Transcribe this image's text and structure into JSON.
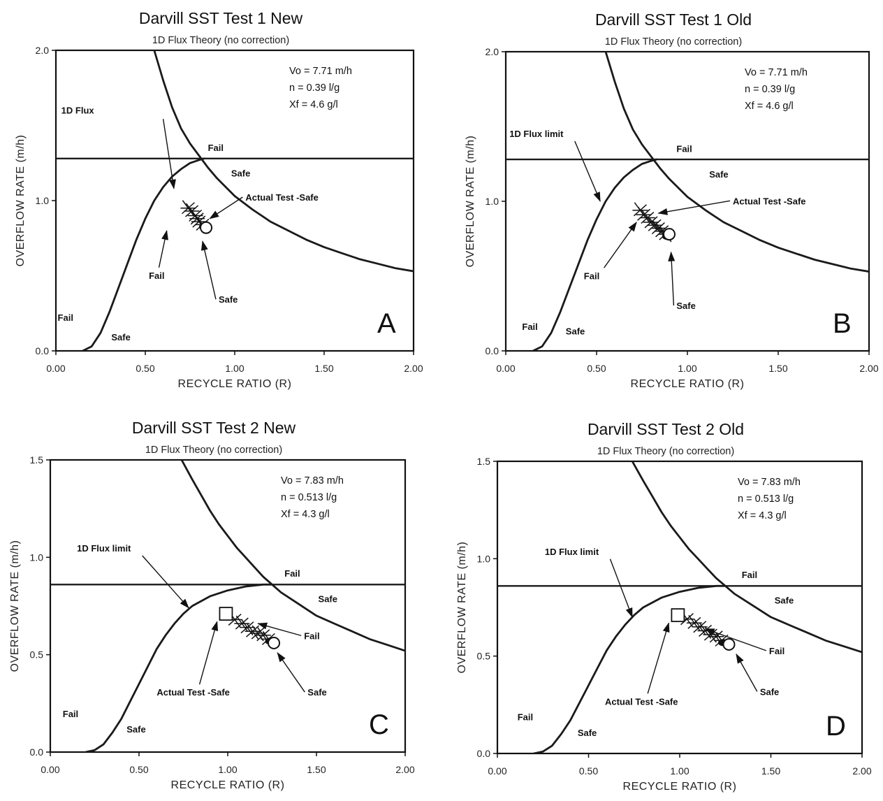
{
  "chart_data": [
    {
      "type": "line",
      "panel_letter": "A",
      "title": "Darvill SST Test 1 New",
      "subtitle": "1D Flux Theory (no correction)",
      "xlabel": "RECYCLE RATIO (R)",
      "ylabel": "OVERFLOW RATE (m/h)",
      "xlim": [
        0,
        2
      ],
      "ylim": [
        0,
        2
      ],
      "x_ticks": [
        "0.00",
        "0.50",
        "1.00",
        "1.50",
        "2.00"
      ],
      "x_tick_values": [
        0,
        0.5,
        1,
        1.5,
        2
      ],
      "y_ticks": [
        "0.0",
        "1.0",
        "2.0"
      ],
      "y_tick_values": [
        0,
        1,
        2
      ],
      "params": [
        "Vo = 7.71 m/h",
        "n = 0.39 l/g",
        "Xf = 4.6 g/l"
      ],
      "series": [
        {
          "x": [
            0.15,
            0.2,
            0.25,
            0.3,
            0.35,
            0.4,
            0.45,
            0.5,
            0.55,
            0.6,
            0.65,
            0.7,
            0.75,
            0.8,
            0.83
          ],
          "y": [
            0.0,
            0.03,
            0.12,
            0.26,
            0.42,
            0.58,
            0.74,
            0.88,
            1.0,
            1.09,
            1.16,
            1.21,
            1.25,
            1.27,
            1.28
          ]
        },
        {
          "x": [
            0.55,
            0.6,
            0.65,
            0.7,
            0.75,
            0.8,
            0.85,
            0.9,
            1.0,
            1.1,
            1.2,
            1.3,
            1.4,
            1.5,
            1.6,
            1.7,
            1.8,
            1.9,
            2.0
          ],
          "y": [
            2.0,
            1.8,
            1.62,
            1.48,
            1.38,
            1.3,
            1.22,
            1.15,
            1.03,
            0.94,
            0.86,
            0.8,
            0.74,
            0.69,
            0.65,
            0.61,
            0.58,
            0.55,
            0.53
          ]
        },
        {
          "x": [
            0,
            2
          ],
          "y": [
            1.28,
            1.28
          ]
        }
      ],
      "test_points": {
        "x": [
          0.74,
          0.76,
          0.78,
          0.79,
          0.8,
          0.82
        ],
        "y": [
          0.95,
          0.93,
          0.9,
          0.88,
          0.86,
          0.84
        ]
      },
      "safe_point": {
        "x": 0.84,
        "y": 0.82
      },
      "annotations": [
        {
          "text": "1D Flux",
          "x": 0.03,
          "y": 1.58,
          "arrow_to": null
        },
        {
          "text": "",
          "x": 0.6,
          "y": 1.52,
          "arrow_to": [
            0.66,
            1.08
          ]
        },
        {
          "text": "Fail",
          "x": 0.85,
          "y": 1.33,
          "arrow_to": null
        },
        {
          "text": "Safe",
          "x": 0.98,
          "y": 1.16,
          "arrow_to": null
        },
        {
          "text": "Actual Test -Safe",
          "x": 1.06,
          "y": 1.0,
          "arrow_to": [
            0.86,
            0.88
          ]
        },
        {
          "text": "Fail",
          "x": 0.52,
          "y": 0.48,
          "arrow_to": [
            0.62,
            0.8
          ]
        },
        {
          "text": "Safe",
          "x": 0.91,
          "y": 0.32,
          "arrow_to": [
            0.82,
            0.73
          ]
        },
        {
          "text": "Fail",
          "x": 0.01,
          "y": 0.2,
          "arrow_to": null
        },
        {
          "text": "Safe",
          "x": 0.31,
          "y": 0.07,
          "arrow_to": null
        }
      ]
    },
    {
      "type": "line",
      "panel_letter": "B",
      "title": "Darvill SST Test 1 Old",
      "subtitle": "1D Flux Theory (no correction)",
      "xlabel": "RECYCLE RATIO (R)",
      "ylabel": "OVERFLOW RATE (m/h)",
      "xlim": [
        0,
        2
      ],
      "ylim": [
        0,
        2
      ],
      "x_ticks": [
        "0.00",
        "0.50",
        "1.00",
        "1.50",
        "2.00"
      ],
      "x_tick_values": [
        0,
        0.5,
        1,
        1.5,
        2
      ],
      "y_ticks": [
        "0.0",
        "1.0",
        "2.0"
      ],
      "y_tick_values": [
        0,
        1,
        2
      ],
      "params": [
        "Vo = 7.71 m/h",
        "n = 0.39 l/g",
        "Xf = 4.6 g/l"
      ],
      "series": [
        {
          "x": [
            0.15,
            0.2,
            0.25,
            0.3,
            0.35,
            0.4,
            0.45,
            0.5,
            0.55,
            0.6,
            0.65,
            0.7,
            0.75,
            0.8,
            0.83
          ],
          "y": [
            0.0,
            0.03,
            0.12,
            0.26,
            0.42,
            0.58,
            0.74,
            0.88,
            1.0,
            1.09,
            1.16,
            1.21,
            1.25,
            1.27,
            1.28
          ]
        },
        {
          "x": [
            0.55,
            0.6,
            0.65,
            0.7,
            0.75,
            0.8,
            0.85,
            0.9,
            1.0,
            1.1,
            1.2,
            1.3,
            1.4,
            1.5,
            1.6,
            1.7,
            1.8,
            1.9,
            2.0
          ],
          "y": [
            2.0,
            1.8,
            1.62,
            1.48,
            1.38,
            1.3,
            1.22,
            1.15,
            1.03,
            0.94,
            0.86,
            0.8,
            0.74,
            0.69,
            0.65,
            0.61,
            0.58,
            0.55,
            0.53
          ]
        },
        {
          "x": [
            0,
            2
          ],
          "y": [
            1.28,
            1.28
          ]
        }
      ],
      "test_points": {
        "x": [
          0.74,
          0.76,
          0.78,
          0.8,
          0.82,
          0.84,
          0.86,
          0.88
        ],
        "y": [
          0.94,
          0.91,
          0.89,
          0.86,
          0.84,
          0.82,
          0.8,
          0.78
        ]
      },
      "safe_point": {
        "x": 0.9,
        "y": 0.78
      },
      "annotations": [
        {
          "text": "1D Flux limit",
          "x": 0.02,
          "y": 1.43,
          "arrow_to": [
            0.52,
            1.0
          ]
        },
        {
          "text": "Fail",
          "x": 0.94,
          "y": 1.33,
          "arrow_to": null
        },
        {
          "text": "Safe",
          "x": 1.12,
          "y": 1.16,
          "arrow_to": null
        },
        {
          "text": "Actual Test -Safe",
          "x": 1.25,
          "y": 0.98,
          "arrow_to": [
            0.84,
            0.92
          ]
        },
        {
          "text": "Fail",
          "x": 0.43,
          "y": 0.48,
          "arrow_to": [
            0.72,
            0.86
          ]
        },
        {
          "text": "Safe",
          "x": 0.94,
          "y": 0.28,
          "arrow_to": [
            0.91,
            0.66
          ]
        },
        {
          "text": "Fail",
          "x": 0.09,
          "y": 0.14,
          "arrow_to": null
        },
        {
          "text": "Safe",
          "x": 0.33,
          "y": 0.11,
          "arrow_to": null
        }
      ]
    },
    {
      "type": "line",
      "panel_letter": "C",
      "title": "Darvill SST Test 2 New",
      "subtitle": "1D Flux Theory (no correction)",
      "xlabel": "RECYCLE RATIO (R)",
      "ylabel": "OVERFLOW RATE (m/h)",
      "xlim": [
        0,
        2
      ],
      "ylim": [
        0,
        1.5
      ],
      "x_ticks": [
        "0.00",
        "0.50",
        "1.00",
        "1.50",
        "2.00"
      ],
      "x_tick_values": [
        0,
        0.5,
        1,
        1.5,
        2
      ],
      "y_ticks": [
        "0.0",
        "0.5",
        "1.0",
        "1.5"
      ],
      "y_tick_values": [
        0,
        0.5,
        1,
        1.5
      ],
      "params": [
        "Vo = 7.83 m/h",
        "n = 0.513 l/g",
        "Xf = 4.3 g/l"
      ],
      "series": [
        {
          "x": [
            0.2,
            0.25,
            0.3,
            0.35,
            0.4,
            0.45,
            0.5,
            0.55,
            0.6,
            0.65,
            0.7,
            0.75,
            0.8,
            0.9,
            1.0,
            1.1,
            1.2,
            1.25
          ],
          "y": [
            0.0,
            0.01,
            0.04,
            0.1,
            0.17,
            0.26,
            0.35,
            0.44,
            0.53,
            0.6,
            0.66,
            0.71,
            0.75,
            0.8,
            0.83,
            0.85,
            0.86,
            0.86
          ]
        },
        {
          "x": [
            0.74,
            0.8,
            0.85,
            0.9,
            0.95,
            1.0,
            1.05,
            1.1,
            1.15,
            1.2,
            1.25,
            1.3,
            1.4,
            1.5,
            1.6,
            1.7,
            1.8,
            1.9,
            2.0
          ],
          "y": [
            1.5,
            1.4,
            1.32,
            1.24,
            1.17,
            1.11,
            1.05,
            1.0,
            0.95,
            0.9,
            0.86,
            0.82,
            0.76,
            0.7,
            0.66,
            0.62,
            0.58,
            0.55,
            0.52
          ]
        },
        {
          "x": [
            0,
            2
          ],
          "y": [
            0.86,
            0.86
          ]
        }
      ],
      "test_points": {
        "x": [
          1.04,
          1.08,
          1.11,
          1.14,
          1.17,
          1.2,
          1.23
        ],
        "y": [
          0.68,
          0.66,
          0.64,
          0.62,
          0.61,
          0.6,
          0.58
        ]
      },
      "actual_point": {
        "x": 0.99,
        "y": 0.71
      },
      "safe_point": {
        "x": 1.26,
        "y": 0.56
      },
      "annotations": [
        {
          "text": "1D Flux limit",
          "x": 0.15,
          "y": 1.03,
          "arrow_to": [
            0.78,
            0.74
          ]
        },
        {
          "text": "Fail",
          "x": 1.32,
          "y": 0.9,
          "arrow_to": null
        },
        {
          "text": "Safe",
          "x": 1.51,
          "y": 0.77,
          "arrow_to": null
        },
        {
          "text": "Fail",
          "x": 1.43,
          "y": 0.58,
          "arrow_to": [
            1.17,
            0.66
          ]
        },
        {
          "text": "Actual Test -Safe",
          "x": 0.6,
          "y": 0.29,
          "arrow_to": [
            0.94,
            0.67
          ]
        },
        {
          "text": "Safe",
          "x": 1.45,
          "y": 0.29,
          "arrow_to": [
            1.28,
            0.51
          ]
        },
        {
          "text": "Fail",
          "x": 0.07,
          "y": 0.18,
          "arrow_to": null
        },
        {
          "text": "Safe",
          "x": 0.43,
          "y": 0.1,
          "arrow_to": null
        }
      ]
    },
    {
      "type": "line",
      "panel_letter": "D",
      "title": "Darvill SST Test 2 Old",
      "subtitle": "1D Flux Theory (no correction)",
      "xlabel": "RECYCLE RATIO (R)",
      "ylabel": "OVERFLOW RATE (m/h)",
      "xlim": [
        0,
        2
      ],
      "ylim": [
        0,
        1.5
      ],
      "x_ticks": [
        "0.00",
        "0.50",
        "1.00",
        "1.50",
        "2.00"
      ],
      "x_tick_values": [
        0,
        0.5,
        1,
        1.5,
        2
      ],
      "y_ticks": [
        "0.0",
        "0.5",
        "1.0",
        "1.5"
      ],
      "y_tick_values": [
        0,
        0.5,
        1,
        1.5
      ],
      "params": [
        "Vo = 7.83 m/h",
        "n = 0.513 l/g",
        "Xf = 4.3 g/l"
      ],
      "series": [
        {
          "x": [
            0.2,
            0.25,
            0.3,
            0.35,
            0.4,
            0.45,
            0.5,
            0.55,
            0.6,
            0.65,
            0.7,
            0.75,
            0.8,
            0.9,
            1.0,
            1.1,
            1.2,
            1.25
          ],
          "y": [
            0.0,
            0.01,
            0.04,
            0.1,
            0.17,
            0.26,
            0.35,
            0.44,
            0.53,
            0.6,
            0.66,
            0.71,
            0.75,
            0.8,
            0.83,
            0.85,
            0.86,
            0.86
          ]
        },
        {
          "x": [
            0.74,
            0.8,
            0.85,
            0.9,
            0.95,
            1.0,
            1.05,
            1.1,
            1.15,
            1.2,
            1.25,
            1.3,
            1.4,
            1.5,
            1.6,
            1.7,
            1.8,
            1.9,
            2.0
          ],
          "y": [
            1.5,
            1.4,
            1.32,
            1.24,
            1.17,
            1.11,
            1.05,
            1.0,
            0.95,
            0.9,
            0.86,
            0.82,
            0.76,
            0.7,
            0.66,
            0.62,
            0.58,
            0.55,
            0.52
          ]
        },
        {
          "x": [
            0,
            2
          ],
          "y": [
            0.86,
            0.86
          ]
        }
      ],
      "test_points": {
        "x": [
          1.04,
          1.08,
          1.11,
          1.14,
          1.17,
          1.2,
          1.23
        ],
        "y": [
          0.69,
          0.67,
          0.65,
          0.63,
          0.61,
          0.6,
          0.58
        ]
      },
      "actual_point": {
        "x": 0.99,
        "y": 0.71
      },
      "safe_point": {
        "x": 1.27,
        "y": 0.56
      },
      "annotations": [
        {
          "text": "1D Flux limit",
          "x": 0.26,
          "y": 1.02,
          "arrow_to": [
            0.74,
            0.7
          ]
        },
        {
          "text": "Fail",
          "x": 1.34,
          "y": 0.9,
          "arrow_to": null
        },
        {
          "text": "Safe",
          "x": 1.52,
          "y": 0.77,
          "arrow_to": null
        },
        {
          "text": "Fail",
          "x": 1.49,
          "y": 0.51,
          "arrow_to": [
            1.14,
            0.64
          ]
        },
        {
          "text": "Actual Test -Safe",
          "x": 0.59,
          "y": 0.25,
          "arrow_to": [
            0.94,
            0.67
          ]
        },
        {
          "text": "Safe",
          "x": 1.44,
          "y": 0.3,
          "arrow_to": [
            1.31,
            0.51
          ]
        },
        {
          "text": "Fail",
          "x": 0.11,
          "y": 0.17,
          "arrow_to": null
        },
        {
          "text": "Safe",
          "x": 0.44,
          "y": 0.09,
          "arrow_to": null
        }
      ]
    }
  ]
}
